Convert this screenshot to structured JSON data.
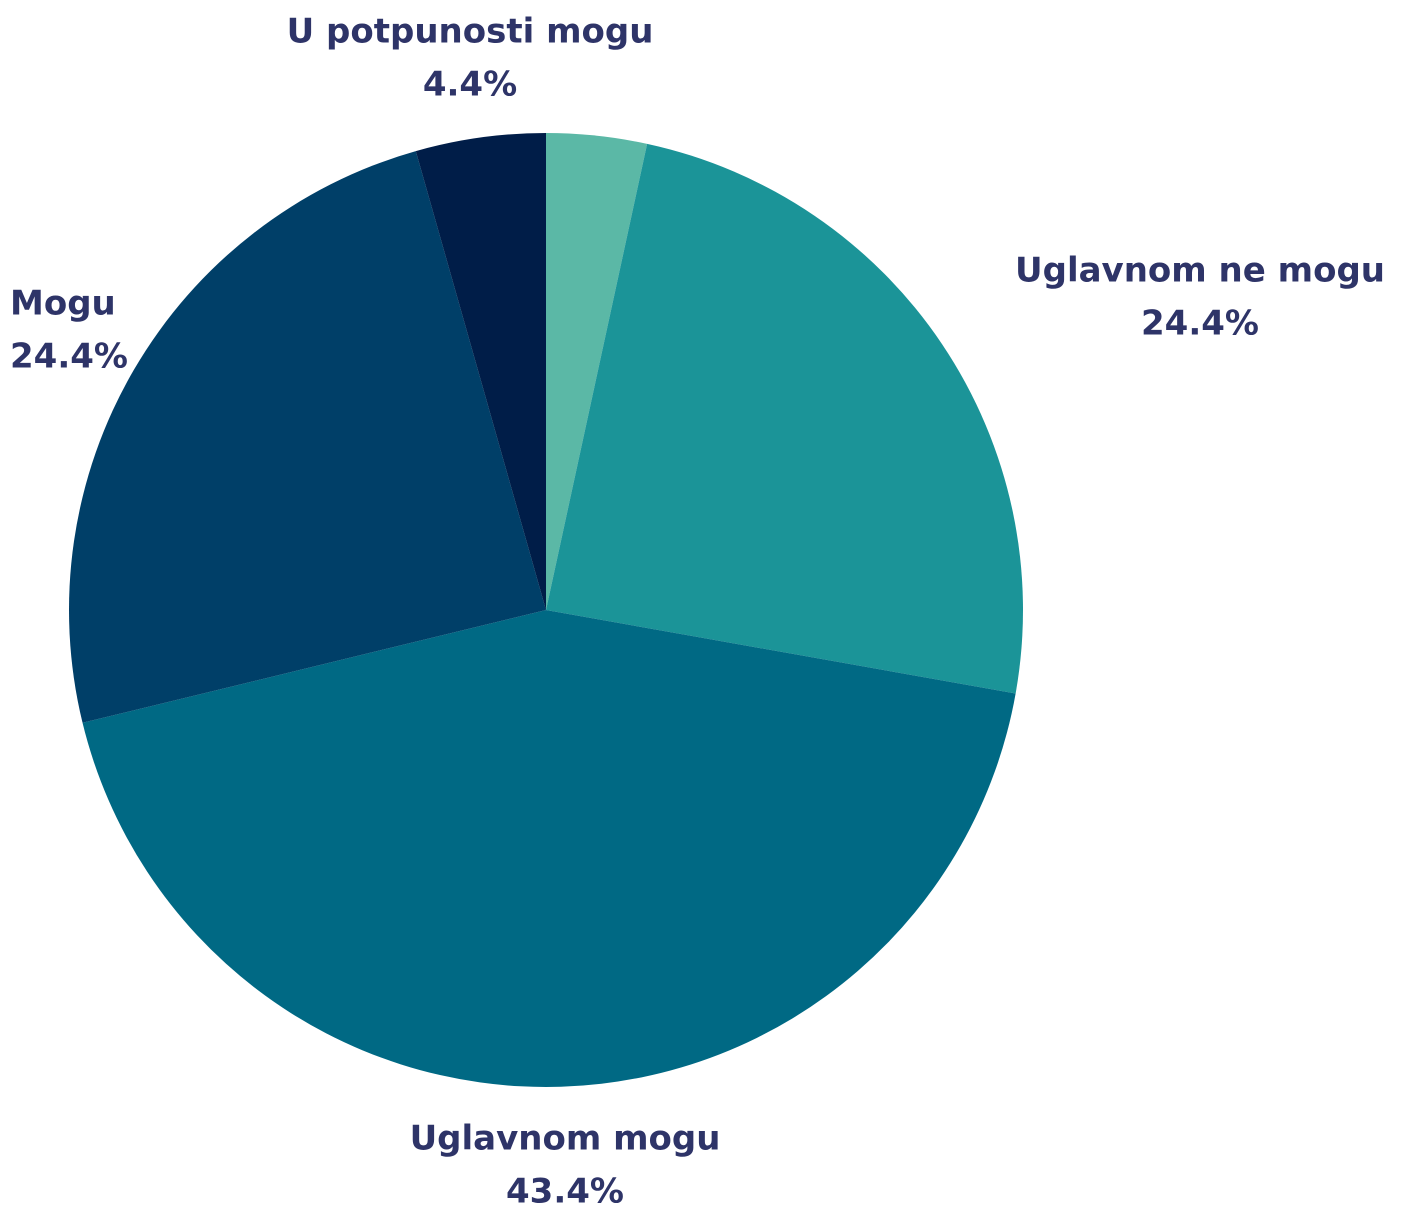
{
  "chart_data": {
    "type": "pie",
    "categories": [
      null,
      "Uglavnom ne mogu",
      "Uglavnom mogu",
      "Mogu",
      "U potpunosti mogu"
    ],
    "values": [
      3.4,
      24.4,
      43.4,
      24.4,
      4.4
    ],
    "value_labels": [
      null,
      "24.4%",
      "43.4%",
      "24.4%",
      "4.4%"
    ],
    "colors": [
      "#5bb8a6",
      "#1b9498",
      "#006984",
      "#003f68",
      "#001d48"
    ]
  }
}
